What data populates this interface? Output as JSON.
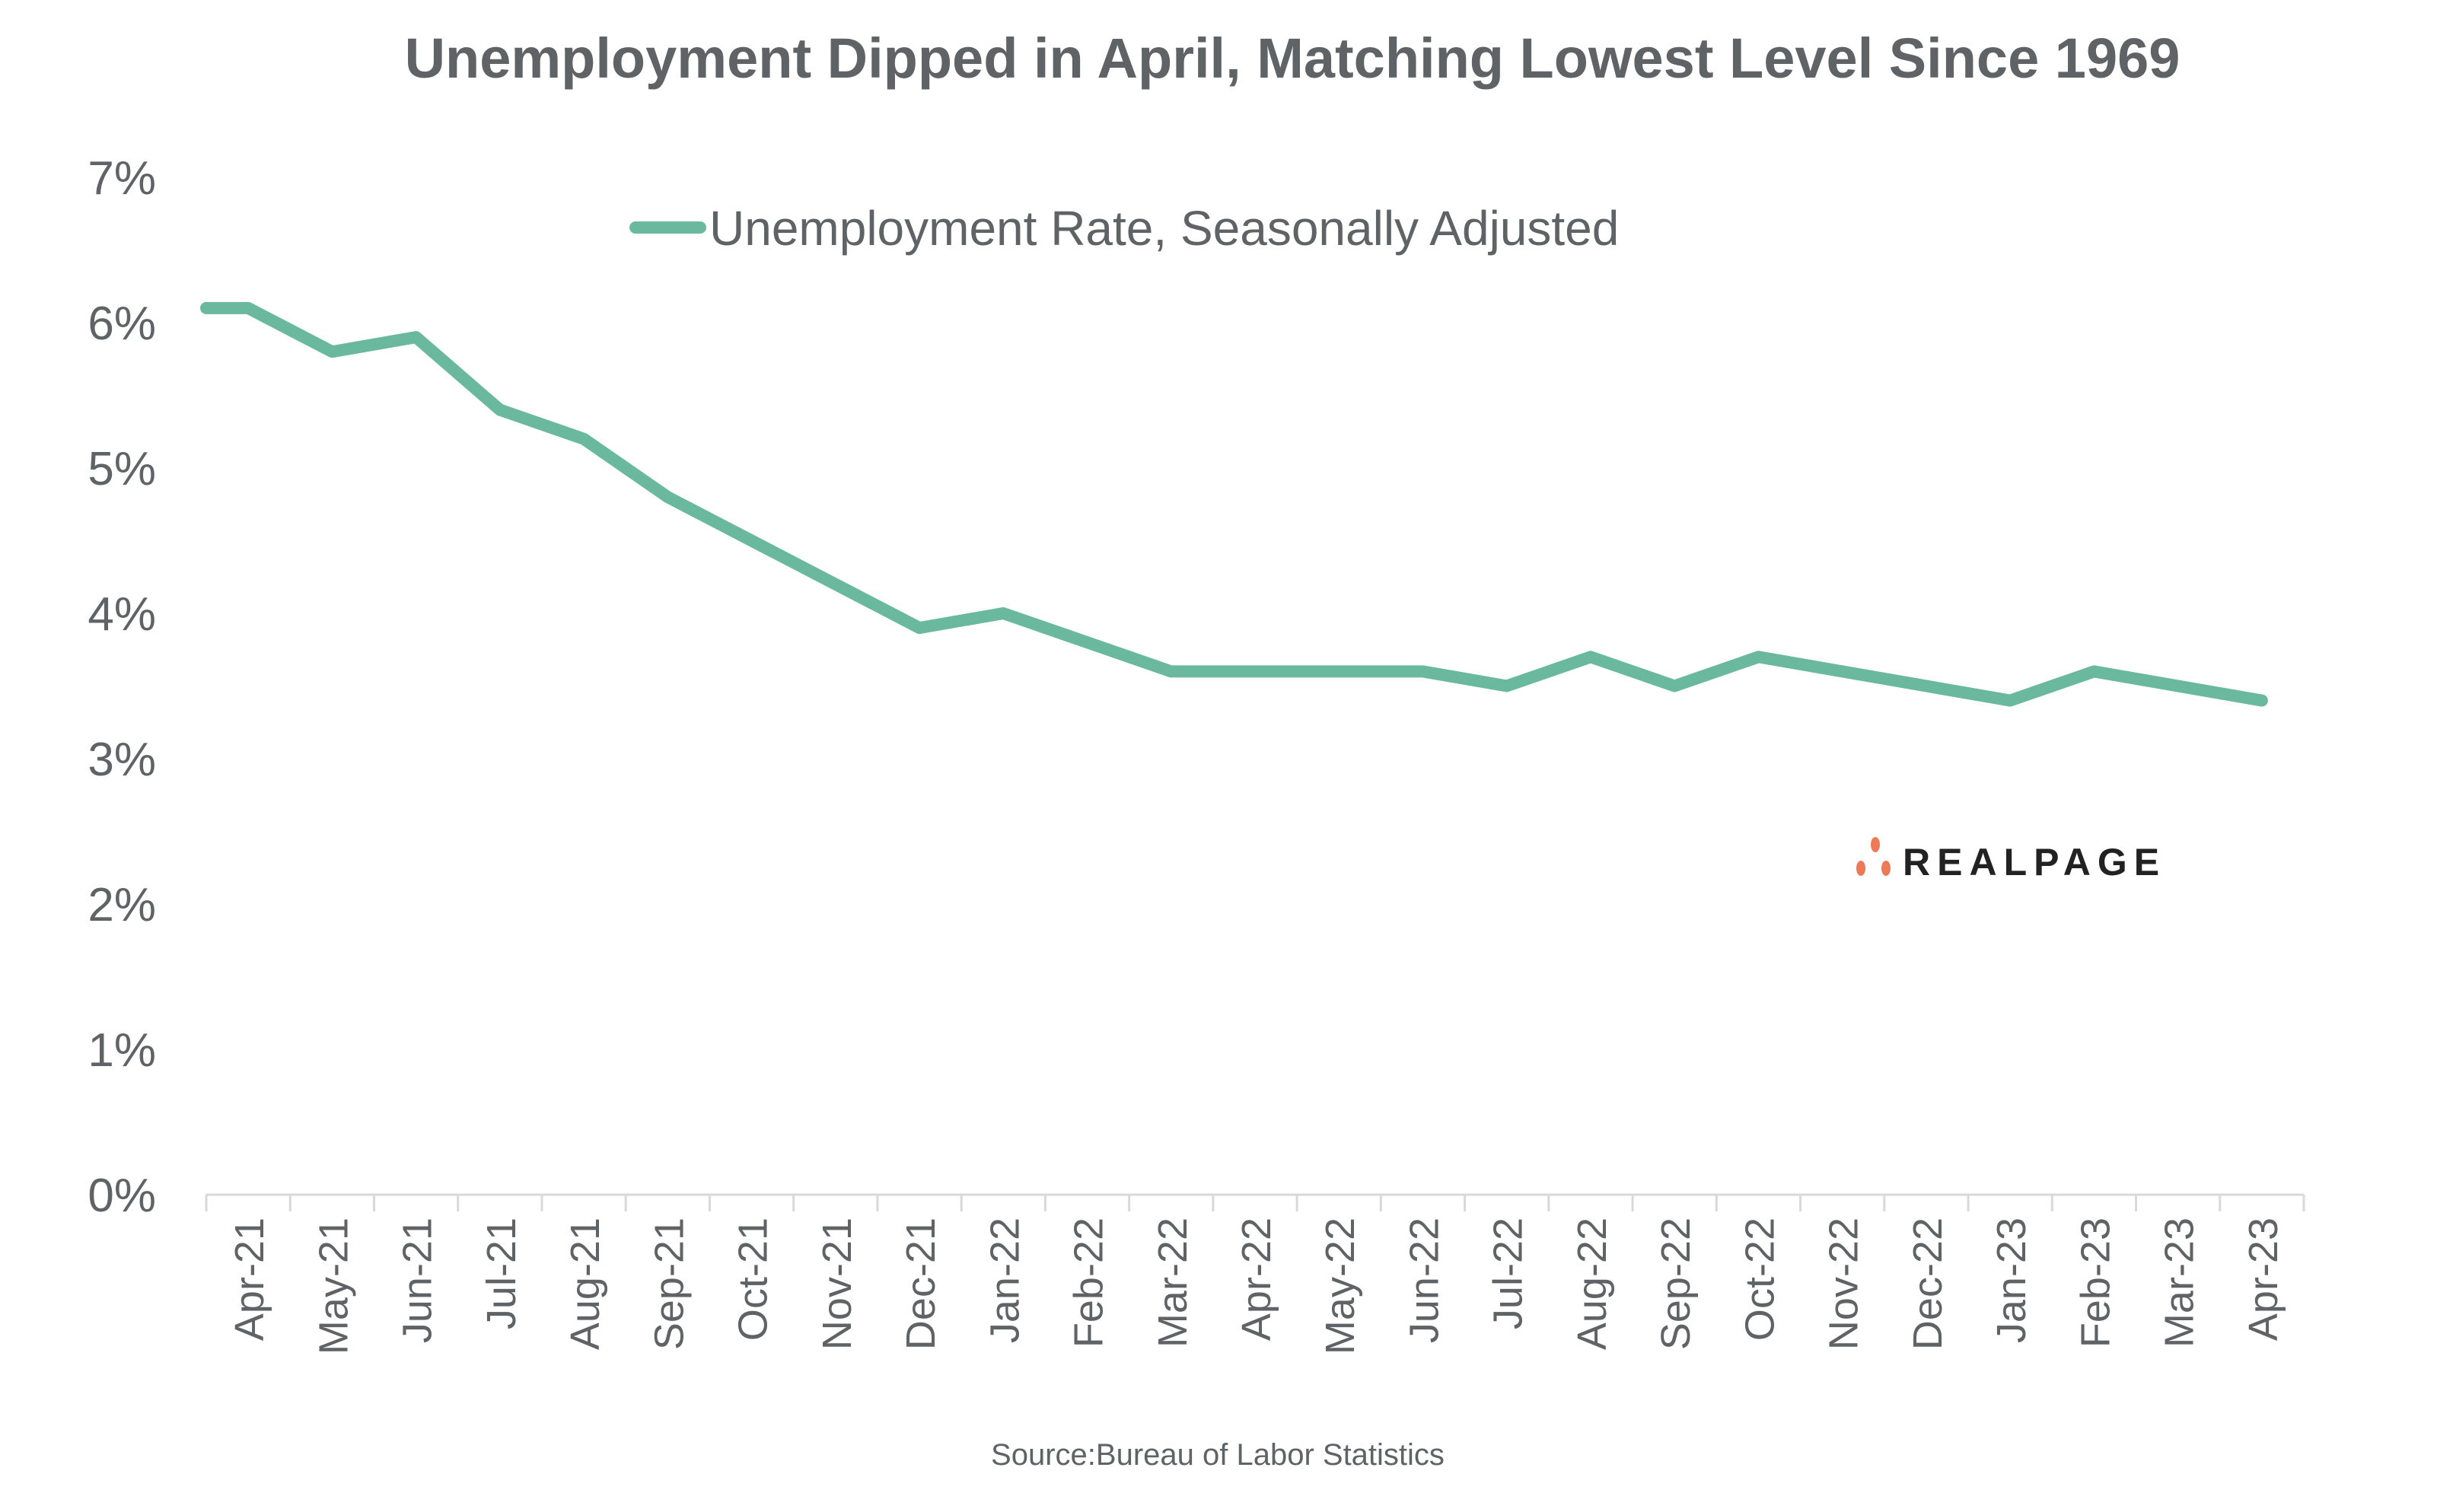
{
  "chart_data": {
    "type": "line",
    "title": "Unemployment Dipped in April, Matching Lowest Level Since 1969",
    "xlabel": "",
    "ylabel": "",
    "categories": [
      "Apr-21",
      "May-21",
      "Jun-21",
      "Jul-21",
      "Aug-21",
      "Sep-21",
      "Oct-21",
      "Nov-21",
      "Dec-21",
      "Jan-22",
      "Feb-22",
      "Mar-22",
      "Apr-22",
      "May-22",
      "Jun-22",
      "Jul-22",
      "Aug-22",
      "Sep-22",
      "Oct-22",
      "Nov-22",
      "Dec-22",
      "Jan-23",
      "Feb-23",
      "Mar-23",
      "Apr-23"
    ],
    "series": [
      {
        "name": "Unemployment Rate, Seasonally Adjusted",
        "color": "#6ab99f",
        "values": [
          6.1,
          5.8,
          5.9,
          5.4,
          5.2,
          4.8,
          4.5,
          4.2,
          3.9,
          4.0,
          3.8,
          3.6,
          3.6,
          3.6,
          3.6,
          3.5,
          3.7,
          3.5,
          3.7,
          3.6,
          3.5,
          3.4,
          3.6,
          3.5,
          3.4
        ]
      }
    ],
    "ylim": [
      0,
      7
    ],
    "yticks": [
      "0%",
      "1%",
      "2%",
      "3%",
      "4%",
      "5%",
      "6%",
      "7%"
    ],
    "grid": false,
    "legend": "top-center",
    "source": "Source:Bureau of Labor Statistics"
  },
  "logo": {
    "text": "REALPAGE",
    "dot_color": "#ec7a56"
  }
}
